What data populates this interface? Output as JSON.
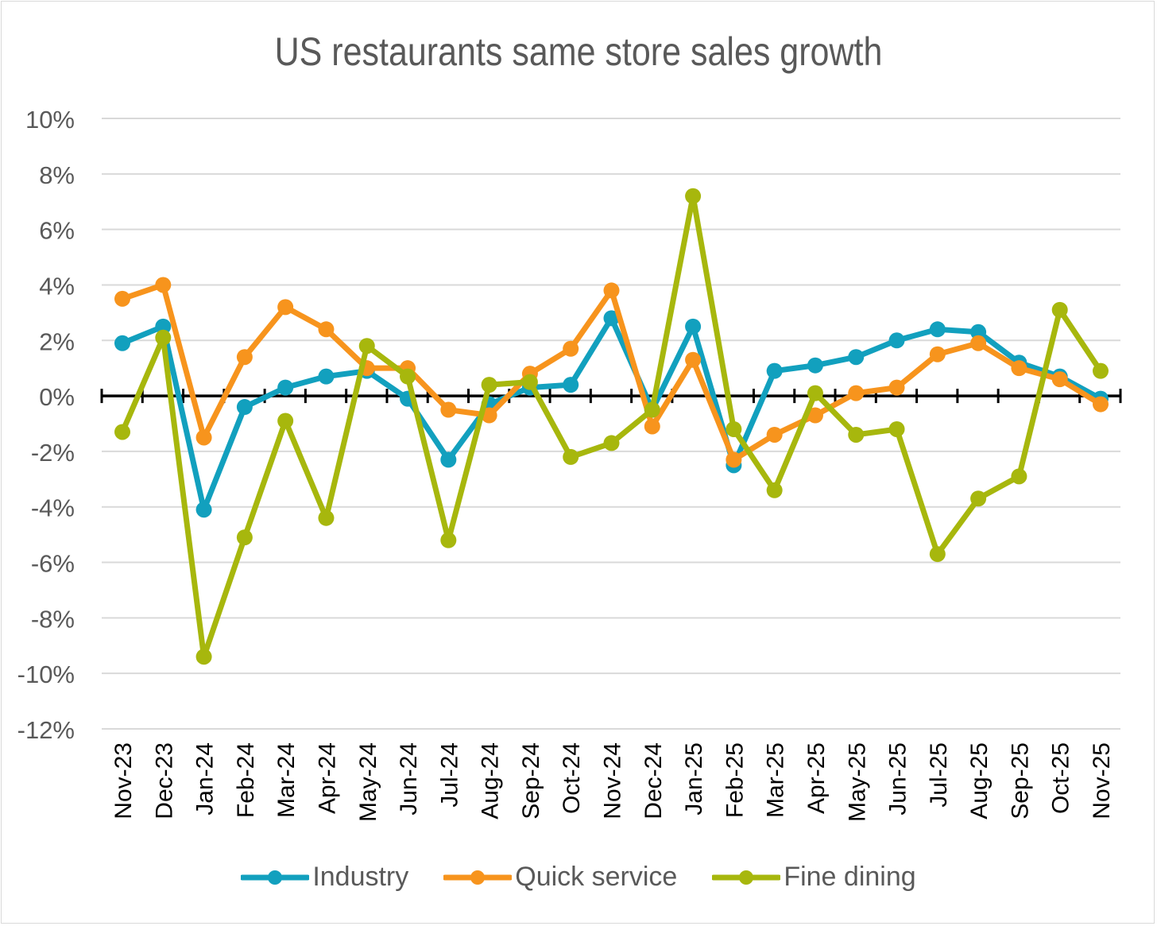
{
  "chart_data": {
    "type": "line",
    "title": "US restaurants same store sales growth",
    "xlabel": "",
    "ylabel": "",
    "ylim": [
      -12,
      10
    ],
    "yticks": [
      10,
      8,
      6,
      4,
      2,
      0,
      -2,
      -4,
      -6,
      -8,
      -10,
      -12
    ],
    "ytick_format": "%",
    "grid": true,
    "legend_position": "bottom",
    "categories": [
      "Nov-23",
      "Dec-23",
      "Jan-24",
      "Feb-24",
      "Mar-24",
      "Apr-24",
      "May-24",
      "Jun-24",
      "Jul-24",
      "Aug-24",
      "Sep-24",
      "Oct-24",
      "Nov-24",
      "Dec-24",
      "Jan-25",
      "Feb-25",
      "Mar-25",
      "Apr-25",
      "May-25",
      "Jun-25",
      "Jul-25",
      "Aug-25",
      "Sep-25",
      "Oct-25",
      "Nov-25"
    ],
    "series": [
      {
        "name": "Industry",
        "color": "#12a0be",
        "values": [
          1.9,
          2.5,
          -4.1,
          -0.4,
          0.3,
          0.7,
          0.9,
          -0.1,
          -2.3,
          -0.3,
          0.3,
          0.4,
          2.8,
          -0.5,
          2.5,
          -2.5,
          0.9,
          1.1,
          1.4,
          2.0,
          2.4,
          2.3,
          1.2,
          0.7,
          -0.1
        ]
      },
      {
        "name": "Quick service",
        "color": "#f7941d",
        "values": [
          3.5,
          4.0,
          -1.5,
          1.4,
          3.2,
          2.4,
          1.0,
          1.0,
          -0.5,
          -0.7,
          0.8,
          1.7,
          3.8,
          -1.1,
          1.3,
          -2.3,
          -1.4,
          -0.7,
          0.1,
          0.3,
          1.5,
          1.9,
          1.0,
          0.6,
          -0.3
        ]
      },
      {
        "name": "Fine dining",
        "color": "#a7b70d",
        "values": [
          -1.3,
          2.1,
          -9.4,
          -5.1,
          -0.9,
          -4.4,
          1.8,
          0.7,
          -5.2,
          0.4,
          0.5,
          -2.2,
          -1.7,
          -0.5,
          7.2,
          -1.2,
          -3.4,
          0.1,
          -1.4,
          -1.2,
          -5.7,
          -3.7,
          -2.9,
          3.1,
          0.9
        ]
      }
    ]
  }
}
